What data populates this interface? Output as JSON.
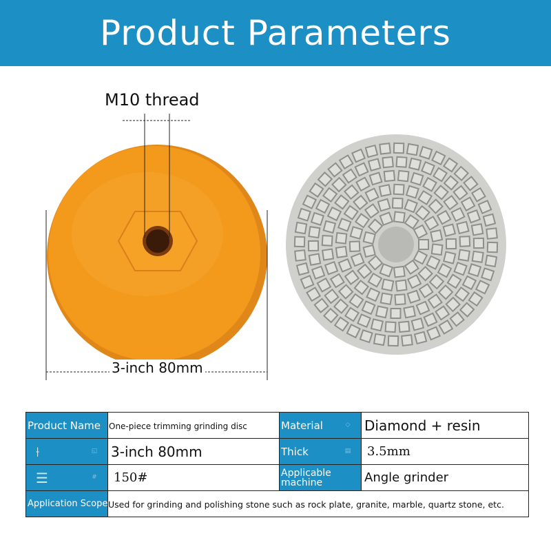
{
  "banner": {
    "title": "Product Parameters"
  },
  "figure": {
    "thread_label": "M10 thread",
    "size_label": "3-inch 80mm",
    "colors": {
      "disc": "#f39a1c",
      "disc_edge": "#e0871a",
      "pad": "#c9c9c6",
      "pad_gap": "#8e8e8a",
      "center": "#b9b9b6"
    }
  },
  "table": {
    "rows": [
      {
        "key1": "Product Name",
        "val1": "One-piece trimming grinding disc",
        "key2": "Material",
        "val2": "Diamond + resin"
      },
      {
        "key1": "",
        "val1": "3-inch 80mm",
        "key2": "Thick",
        "val2": "3.5mm"
      },
      {
        "key1": "",
        "val1": "150#",
        "key2": "Applicable machine",
        "val2": "Angle grinder"
      },
      {
        "key1": "Application Scope",
        "val1": "Used for grinding and polishing stone such as rock plate, granite, marble, quartz stone, etc."
      }
    ],
    "icons": [
      "ruler-icon",
      "list-icon"
    ],
    "colors": {
      "header_bg": "#1c8fc5"
    }
  }
}
